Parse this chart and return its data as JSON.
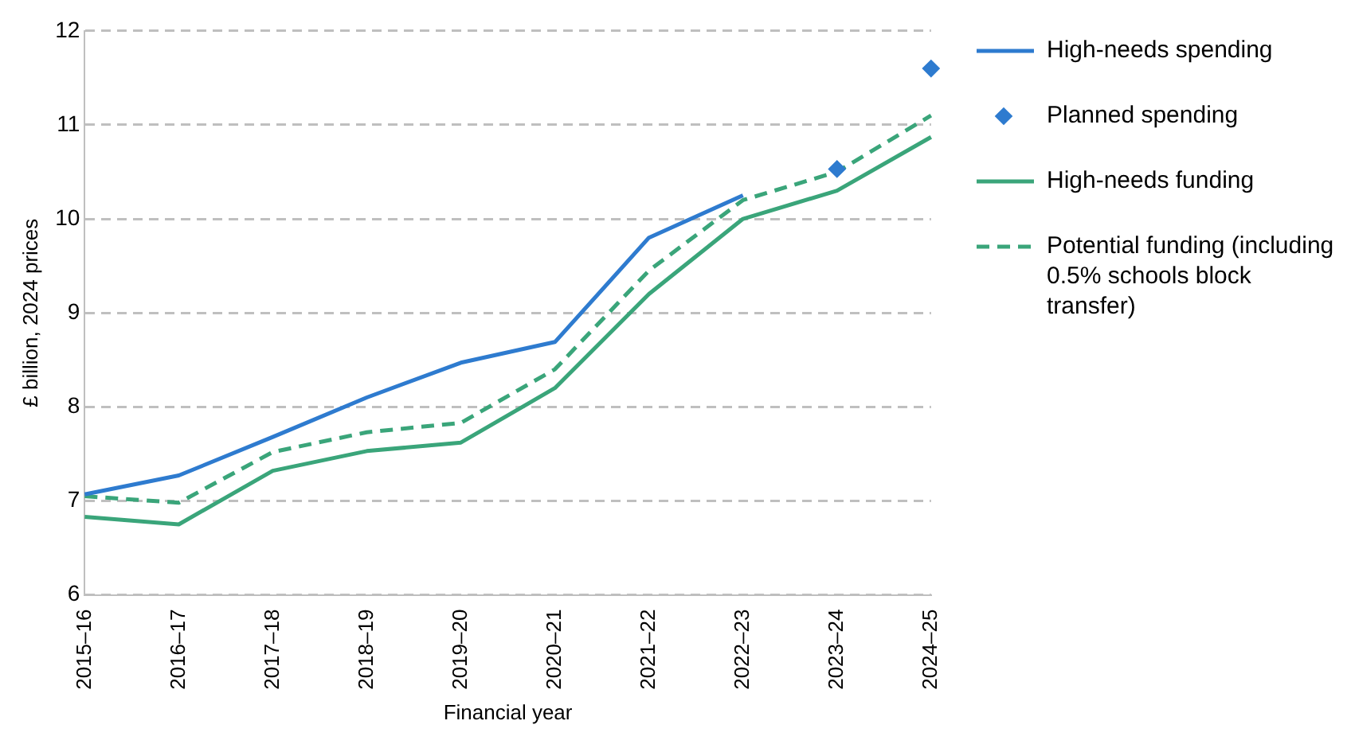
{
  "chart_data": {
    "type": "line",
    "xlabel": "Financial year",
    "ylabel": "£ billion, 2024 prices",
    "categories": [
      "2015–16",
      "2016–17",
      "2017–18",
      "2018–19",
      "2019–20",
      "2020–21",
      "2021–22",
      "2022–23",
      "2023–24",
      "2024–25"
    ],
    "series": [
      {
        "name": "High-needs spending",
        "color": "#2e7bcf",
        "line_style": "solid",
        "marker": "none",
        "values": [
          7.07,
          7.27,
          7.68,
          8.1,
          8.47,
          8.69,
          9.8,
          10.25,
          null,
          null
        ]
      },
      {
        "name": "Planned spending",
        "type": "scatter",
        "color": "#2e7bcf",
        "marker": "diamond",
        "values": [
          null,
          null,
          null,
          null,
          null,
          null,
          null,
          null,
          10.53,
          11.6
        ]
      },
      {
        "name": "High-needs funding",
        "color": "#3aa57a",
        "line_style": "solid",
        "marker": "none",
        "values": [
          6.83,
          6.75,
          7.32,
          7.53,
          7.62,
          8.2,
          9.2,
          10.0,
          10.3,
          10.87
        ]
      },
      {
        "name": "Potential funding (including 0.5% schools block transfer)",
        "color": "#3aa57a",
        "line_style": "dashed",
        "marker": "none",
        "values": [
          7.05,
          6.98,
          7.52,
          7.73,
          7.83,
          8.4,
          9.45,
          10.2,
          10.5,
          11.1
        ]
      }
    ],
    "ylim": [
      6,
      12
    ],
    "yticks": [
      6,
      7,
      8,
      9,
      10,
      11,
      12
    ],
    "grid": "y",
    "legend": "right"
  }
}
